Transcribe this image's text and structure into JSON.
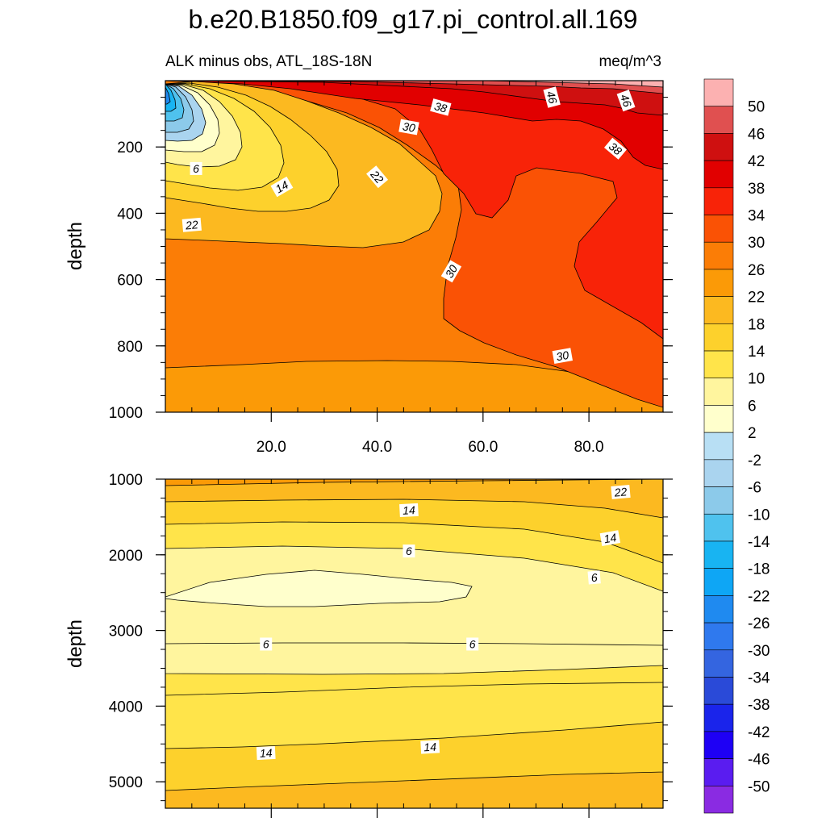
{
  "chart_data": {
    "type": "contour",
    "title": "b.e20.B1850.f09_g17.pi_control.all.169",
    "subtitle_left": "ALK minus obs, ATL_18S-18N",
    "subtitle_right": "meq/m^3",
    "colors": {
      "levels": [
        -50,
        -46,
        -42,
        -38,
        -34,
        -30,
        -26,
        -22,
        -18,
        -14,
        -10,
        -6,
        -2,
        2,
        6,
        10,
        14,
        18,
        22,
        26,
        30,
        34,
        38,
        42,
        46,
        50
      ],
      "fills": [
        "#8a2be2",
        "#5a1cf0",
        "#1e00f5",
        "#1a24eb",
        "#2a4ad8",
        "#3465e0",
        "#2f79ee",
        "#1f8af0",
        "#0ea6f5",
        "#18b4f2",
        "#4fc2ee",
        "#8ccaea",
        "#aad4ef",
        "#b8dff4",
        "#ffffcc",
        "#fff59e",
        "#ffe44a",
        "#fdd12c",
        "#fcb920",
        "#fb9a07",
        "#fb7d06",
        "#fa5205",
        "#f82308",
        "#e10000",
        "#cf1010",
        "#e05050",
        "#fcb1b1"
      ]
    },
    "colorbar_labels": [
      "50",
      "46",
      "42",
      "38",
      "34",
      "30",
      "26",
      "22",
      "18",
      "14",
      "10",
      "6",
      "2",
      "-2",
      "-6",
      "-10",
      "-14",
      "-18",
      "-22",
      "-26",
      "-30",
      "-34",
      "-38",
      "-42",
      "-46",
      "-50"
    ],
    "panels": [
      {
        "name": "upper",
        "ylabel": "depth",
        "xlabel": "",
        "xlim": [
          0,
          94
        ],
        "ylim": [
          0,
          1000
        ],
        "y_inverted": true,
        "x_ticks": [
          20,
          40,
          60,
          80
        ],
        "x_tick_labels": [
          "20.0",
          "40.0",
          "60.0",
          "80.0"
        ],
        "y_ticks": [
          200,
          400,
          600,
          800,
          1000
        ],
        "y_tick_labels": [
          "200",
          "400",
          "600",
          "800",
          "1000"
        ],
        "contour_labels": [
          {
            "text": "38",
            "x": 52,
            "y": 80,
            "angle": 15
          },
          {
            "text": "46",
            "x": 73,
            "y": 50,
            "angle": 75
          },
          {
            "text": "46",
            "x": 87,
            "y": 60,
            "angle": 70
          },
          {
            "text": "30",
            "x": 46,
            "y": 140,
            "angle": 10
          },
          {
            "text": "38",
            "x": 85,
            "y": 205,
            "angle": 40
          },
          {
            "text": "6",
            "x": 5.8,
            "y": 265,
            "angle": 0
          },
          {
            "text": "14",
            "x": 22,
            "y": 320,
            "angle": -30
          },
          {
            "text": "22",
            "x": 40,
            "y": 290,
            "angle": 50
          },
          {
            "text": "22",
            "x": 5,
            "y": 435,
            "angle": -5
          },
          {
            "text": "30",
            "x": 54,
            "y": 575,
            "angle": -60
          },
          {
            "text": "30",
            "x": 75,
            "y": 830,
            "angle": -10
          }
        ]
      },
      {
        "name": "lower",
        "ylabel": "depth",
        "xlabel": "",
        "xlim": [
          0,
          94
        ],
        "ylim": [
          1000,
          5350
        ],
        "y_inverted": true,
        "x_ticks": [
          20,
          40,
          60,
          80
        ],
        "y_ticks": [
          1000,
          2000,
          3000,
          4000,
          5000
        ],
        "y_tick_labels": [
          "1000",
          "2000",
          "3000",
          "4000",
          "5000"
        ],
        "contour_labels": [
          {
            "text": "22",
            "x": 86,
            "y": 1170,
            "angle": -5
          },
          {
            "text": "14",
            "x": 46,
            "y": 1410,
            "angle": -3
          },
          {
            "text": "14",
            "x": 84,
            "y": 1780,
            "angle": -10
          },
          {
            "text": "6",
            "x": 46,
            "y": 1950,
            "angle": 0
          },
          {
            "text": "6",
            "x": 81,
            "y": 2300,
            "angle": -5
          },
          {
            "text": "6",
            "x": 19,
            "y": 3180,
            "angle": 0
          },
          {
            "text": "6",
            "x": 58,
            "y": 3180,
            "angle": 0
          },
          {
            "text": "14",
            "x": 19,
            "y": 4620,
            "angle": -3
          },
          {
            "text": "14",
            "x": 50,
            "y": 4540,
            "angle": -3
          }
        ]
      }
    ]
  }
}
